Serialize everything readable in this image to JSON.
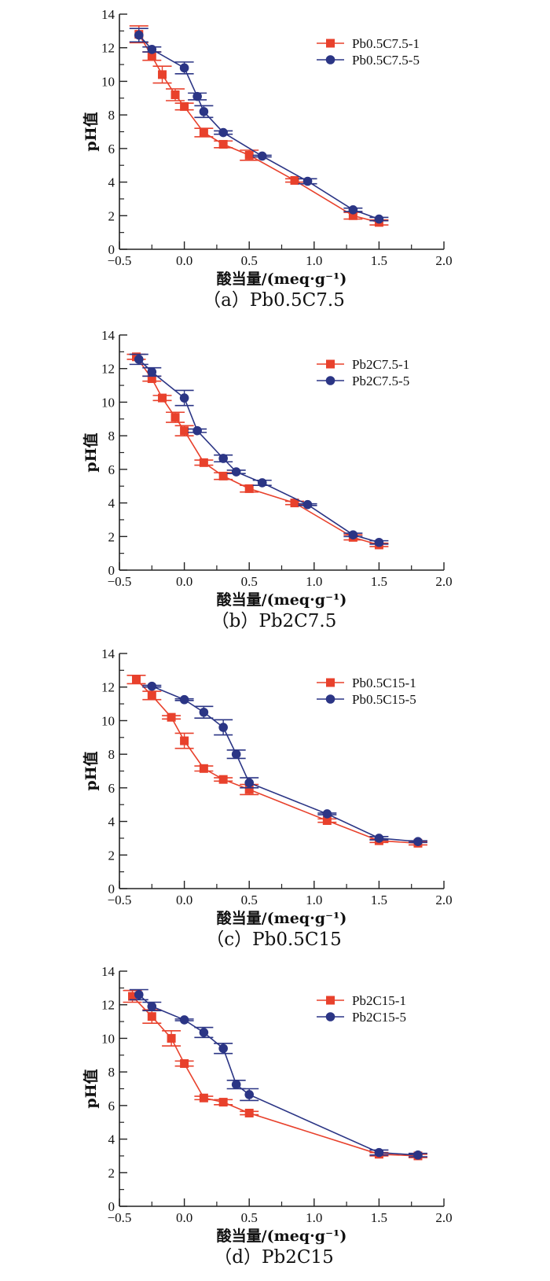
{
  "colors": {
    "series1": "#e8412c",
    "series2": "#2b3585",
    "axis": "#222222"
  },
  "chart_data": [
    {
      "id": "a",
      "type": "line",
      "caption": "（a）Pb0.5C7.5",
      "xlabel": "酸当量/(meq·g⁻¹)",
      "ylabel": "pH值",
      "xlim": [
        -0.5,
        2.0
      ],
      "ylim": [
        0,
        14
      ],
      "xticks": [
        -0.5,
        0.0,
        0.5,
        1.0,
        1.5,
        2.0
      ],
      "xtick_labels": [
        "−0.5",
        "0.0",
        "0.5",
        "1.0",
        "1.5",
        "2.0"
      ],
      "yticks": [
        0,
        2,
        4,
        6,
        8,
        10,
        12,
        14
      ],
      "ytick_labels": [
        "0",
        "2",
        "4",
        "6",
        "8",
        "10",
        "12",
        "14"
      ],
      "grid": false,
      "legend_position": "top-right",
      "series": [
        {
          "name": "Pb0.5C7.5-1",
          "marker": "square",
          "x": [
            -0.35,
            -0.25,
            -0.17,
            -0.07,
            0.0,
            0.15,
            0.3,
            0.5,
            0.85,
            1.3,
            1.5
          ],
          "y": [
            12.8,
            11.5,
            10.4,
            9.2,
            8.5,
            6.95,
            6.25,
            5.6,
            4.1,
            2.0,
            1.6
          ],
          "err": [
            0.5,
            0.25,
            0.5,
            0.35,
            0.2,
            0.25,
            0.2,
            0.3,
            0.1,
            0.2,
            0.15
          ]
        },
        {
          "name": "Pb0.5C7.5-5",
          "marker": "circle",
          "x": [
            -0.35,
            -0.25,
            0.0,
            0.1,
            0.15,
            0.3,
            0.6,
            0.95,
            1.3,
            1.5
          ],
          "y": [
            12.75,
            11.9,
            10.8,
            9.1,
            8.2,
            6.95,
            5.55,
            4.05,
            2.35,
            1.8
          ],
          "err": [
            0.4,
            0.15,
            0.35,
            0.2,
            0.35,
            0.1,
            0.05,
            0.15,
            0.1,
            0.1
          ]
        }
      ]
    },
    {
      "id": "b",
      "type": "line",
      "caption": "（b）Pb2C7.5",
      "xlabel": "酸当量/(meq·g⁻¹)",
      "ylabel": "pH值",
      "xlim": [
        -0.5,
        2.0
      ],
      "ylim": [
        0,
        14
      ],
      "xticks": [
        -0.5,
        0.0,
        0.5,
        1.0,
        1.5,
        2.0
      ],
      "xtick_labels": [
        "−0.5",
        "0.0",
        "0.5",
        "1.0",
        "1.5",
        "2.0"
      ],
      "yticks": [
        0,
        2,
        4,
        6,
        8,
        10,
        12,
        14
      ],
      "ytick_labels": [
        "0",
        "2",
        "4",
        "6",
        "8",
        "10",
        "12",
        "14"
      ],
      "grid": false,
      "legend_position": "top-right",
      "series": [
        {
          "name": "Pb2C7.5-1",
          "marker": "square",
          "x": [
            -0.37,
            -0.25,
            -0.17,
            -0.07,
            0.0,
            0.15,
            0.3,
            0.5,
            0.85,
            1.3,
            1.5
          ],
          "y": [
            12.7,
            11.4,
            10.25,
            9.1,
            8.3,
            6.4,
            5.6,
            4.85,
            4.0,
            1.95,
            1.5
          ],
          "err": [
            0.15,
            0.15,
            0.15,
            0.3,
            0.3,
            0.15,
            0.2,
            0.2,
            0.1,
            0.15,
            0.1
          ]
        },
        {
          "name": "Pb2C7.5-5",
          "marker": "circle",
          "x": [
            -0.35,
            -0.25,
            0.0,
            0.1,
            0.3,
            0.4,
            0.6,
            0.95,
            1.3,
            1.5
          ],
          "y": [
            12.55,
            11.8,
            10.25,
            8.3,
            6.65,
            5.85,
            5.2,
            3.9,
            2.1,
            1.65
          ],
          "err": [
            0.3,
            0.25,
            0.45,
            0.1,
            0.2,
            0.1,
            0.15,
            0.05,
            0.1,
            0.1
          ]
        }
      ]
    },
    {
      "id": "c",
      "type": "line",
      "caption": "（c）Pb0.5C15",
      "xlabel": "酸当量/(meq·g⁻¹)",
      "ylabel": "pH值",
      "xlim": [
        -0.5,
        2.0
      ],
      "ylim": [
        0,
        14
      ],
      "xticks": [
        -0.5,
        0.0,
        0.5,
        1.0,
        1.5,
        2.0
      ],
      "xtick_labels": [
        "−0.5",
        "0.0",
        "0.5",
        "1.0",
        "1.5",
        "2.0"
      ],
      "yticks": [
        0,
        2,
        4,
        6,
        8,
        10,
        12,
        14
      ],
      "ytick_labels": [
        "0",
        "2",
        "4",
        "6",
        "8",
        "10",
        "12",
        "14"
      ],
      "grid": false,
      "legend_position": "top-right",
      "series": [
        {
          "name": "Pb0.5C15-1",
          "marker": "square",
          "x": [
            -0.37,
            -0.25,
            -0.1,
            0.0,
            0.15,
            0.3,
            0.5,
            1.1,
            1.5,
            1.8
          ],
          "y": [
            12.45,
            11.5,
            10.2,
            8.8,
            7.15,
            6.5,
            5.9,
            4.05,
            2.85,
            2.7
          ],
          "err": [
            0.25,
            0.25,
            0.1,
            0.45,
            0.15,
            0.1,
            0.3,
            0.1,
            0.1,
            0.1
          ]
        },
        {
          "name": "Pb0.5C15-5",
          "marker": "circle",
          "x": [
            -0.25,
            0.0,
            0.15,
            0.3,
            0.4,
            0.5,
            1.1,
            1.5,
            1.8
          ],
          "y": [
            12.05,
            11.25,
            10.5,
            9.6,
            8.0,
            6.3,
            4.45,
            3.0,
            2.8
          ],
          "err": [
            0.05,
            0.05,
            0.35,
            0.45,
            0.25,
            0.3,
            0.05,
            0.1,
            0.05
          ]
        }
      ]
    },
    {
      "id": "d",
      "type": "line",
      "caption": "（d）Pb2C15",
      "xlabel": "酸当量/(meq·g⁻¹)",
      "ylabel": "pH值",
      "xlim": [
        -0.5,
        2.0
      ],
      "ylim": [
        0,
        14
      ],
      "xticks": [
        -0.5,
        0.0,
        0.5,
        1.0,
        1.5,
        2.0
      ],
      "xtick_labels": [
        "−0.5",
        "0.0",
        "0.5",
        "1.0",
        "1.5",
        "2.0"
      ],
      "yticks": [
        0,
        2,
        4,
        6,
        8,
        10,
        12,
        14
      ],
      "ytick_labels": [
        "0",
        "2",
        "4",
        "6",
        "8",
        "10",
        "12",
        "14"
      ],
      "grid": false,
      "legend_position": "top-right",
      "series": [
        {
          "name": "Pb2C15-1",
          "marker": "square",
          "x": [
            -0.4,
            -0.25,
            -0.1,
            0.0,
            0.15,
            0.3,
            0.5,
            1.5,
            1.8
          ],
          "y": [
            12.5,
            11.3,
            10.0,
            8.5,
            6.45,
            6.2,
            5.55,
            3.1,
            3.0
          ],
          "err": [
            0.35,
            0.4,
            0.45,
            0.15,
            0.1,
            0.15,
            0.1,
            0.1,
            0.1
          ]
        },
        {
          "name": "Pb2C15-5",
          "marker": "circle",
          "x": [
            -0.35,
            -0.25,
            0.0,
            0.15,
            0.3,
            0.4,
            0.5,
            1.5,
            1.8
          ],
          "y": [
            12.6,
            11.9,
            11.1,
            10.35,
            9.4,
            7.25,
            6.65,
            3.2,
            3.05
          ],
          "err": [
            0.3,
            0.25,
            0.05,
            0.3,
            0.3,
            0.25,
            0.35,
            0.15,
            0.1
          ]
        }
      ]
    }
  ]
}
